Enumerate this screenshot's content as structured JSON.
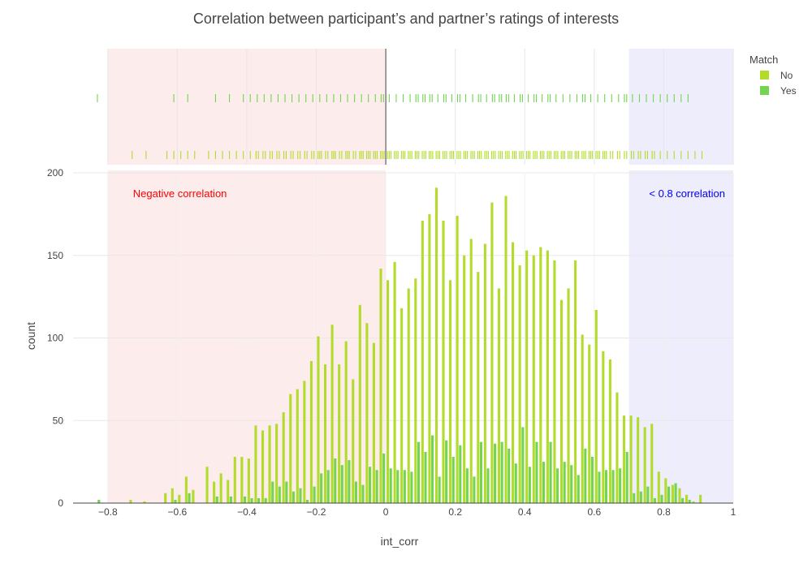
{
  "chart_data": {
    "type": "bar",
    "title": "Correlation between participant’s and partner’s ratings of interests",
    "xlabel": "int_corr",
    "ylabel": "count",
    "xlim": [
      -0.9,
      1.0
    ],
    "ylim": [
      0,
      200
    ],
    "x_ticks": [
      -0.8,
      -0.6,
      -0.4,
      -0.2,
      0,
      0.2,
      0.4,
      0.6,
      0.8,
      1
    ],
    "x_tick_labels": [
      "−0.8",
      "−0.6",
      "−0.4",
      "−0.2",
      "0",
      "0.2",
      "0.4",
      "0.6",
      "0.8",
      "1"
    ],
    "y_ticks": [
      0,
      50,
      100,
      150,
      200
    ],
    "y_tick_labels": [
      "0",
      "50",
      "100",
      "150",
      "200"
    ],
    "bin_width": 0.02,
    "barmode": "group",
    "grid": true,
    "marginal": "rug",
    "legend": {
      "title": "Match",
      "position": "top-right"
    },
    "shaded_regions": [
      {
        "x0": -0.8,
        "x1": 0.0,
        "color": "#fdecec",
        "annotation": "Negative correlation",
        "annotation_color": "#ff0000"
      },
      {
        "x0": 0.7,
        "x1": 1.0,
        "color": "#ededfc",
        "annotation": "< 0.8 correlation",
        "annotation_color": "#0000ff"
      }
    ],
    "reference_line": {
      "x": 0.0
    },
    "series": [
      {
        "name": "No",
        "color": "#b3db2a",
        "bins": [
          [
            -0.73,
            2
          ],
          [
            -0.69,
            1
          ],
          [
            -0.63,
            6
          ],
          [
            -0.61,
            9
          ],
          [
            -0.59,
            5
          ],
          [
            -0.57,
            16
          ],
          [
            -0.55,
            8
          ],
          [
            -0.51,
            22
          ],
          [
            -0.49,
            13
          ],
          [
            -0.47,
            18
          ],
          [
            -0.45,
            14
          ],
          [
            -0.43,
            28
          ],
          [
            -0.41,
            28
          ],
          [
            -0.39,
            27
          ],
          [
            -0.37,
            47
          ],
          [
            -0.35,
            44
          ],
          [
            -0.33,
            47
          ],
          [
            -0.31,
            48
          ],
          [
            -0.29,
            55
          ],
          [
            -0.27,
            66
          ],
          [
            -0.25,
            69
          ],
          [
            -0.23,
            74
          ],
          [
            -0.21,
            86
          ],
          [
            -0.19,
            101
          ],
          [
            -0.17,
            84
          ],
          [
            -0.15,
            108
          ],
          [
            -0.13,
            84
          ],
          [
            -0.11,
            98
          ],
          [
            -0.09,
            75
          ],
          [
            -0.07,
            120
          ],
          [
            -0.05,
            109
          ],
          [
            -0.03,
            97
          ],
          [
            -0.01,
            142
          ],
          [
            0.01,
            135
          ],
          [
            0.03,
            146
          ],
          [
            0.05,
            118
          ],
          [
            0.07,
            130
          ],
          [
            0.09,
            136
          ],
          [
            0.11,
            171
          ],
          [
            0.13,
            175
          ],
          [
            0.15,
            191
          ],
          [
            0.17,
            171
          ],
          [
            0.19,
            135
          ],
          [
            0.21,
            174
          ],
          [
            0.23,
            150
          ],
          [
            0.25,
            160
          ],
          [
            0.27,
            140
          ],
          [
            0.29,
            157
          ],
          [
            0.31,
            182
          ],
          [
            0.33,
            130
          ],
          [
            0.35,
            186
          ],
          [
            0.37,
            158
          ],
          [
            0.39,
            144
          ],
          [
            0.41,
            153
          ],
          [
            0.43,
            150
          ],
          [
            0.45,
            155
          ],
          [
            0.47,
            153
          ],
          [
            0.49,
            147
          ],
          [
            0.51,
            123
          ],
          [
            0.53,
            130
          ],
          [
            0.55,
            147
          ],
          [
            0.57,
            102
          ],
          [
            0.59,
            96
          ],
          [
            0.61,
            117
          ],
          [
            0.63,
            92
          ],
          [
            0.65,
            87
          ],
          [
            0.67,
            67
          ],
          [
            0.69,
            53
          ],
          [
            0.71,
            53
          ],
          [
            0.73,
            52
          ],
          [
            0.75,
            46
          ],
          [
            0.77,
            48
          ],
          [
            0.79,
            19
          ],
          [
            0.81,
            15
          ],
          [
            0.83,
            11
          ],
          [
            0.85,
            9
          ],
          [
            0.87,
            5
          ],
          [
            0.89,
            1
          ],
          [
            0.91,
            5
          ]
        ]
      },
      {
        "name": "Yes",
        "color": "#72d450",
        "bins": [
          [
            -0.83,
            2
          ],
          [
            -0.61,
            2
          ],
          [
            -0.57,
            6
          ],
          [
            -0.49,
            4
          ],
          [
            -0.45,
            4
          ],
          [
            -0.41,
            4
          ],
          [
            -0.39,
            3
          ],
          [
            -0.37,
            3
          ],
          [
            -0.35,
            3
          ],
          [
            -0.33,
            13
          ],
          [
            -0.31,
            10
          ],
          [
            -0.29,
            13
          ],
          [
            -0.27,
            7
          ],
          [
            -0.25,
            9
          ],
          [
            -0.23,
            2
          ],
          [
            -0.21,
            10
          ],
          [
            -0.19,
            18
          ],
          [
            -0.17,
            20
          ],
          [
            -0.15,
            27
          ],
          [
            -0.13,
            23
          ],
          [
            -0.11,
            26
          ],
          [
            -0.09,
            13
          ],
          [
            -0.07,
            11
          ],
          [
            -0.05,
            22
          ],
          [
            -0.03,
            20
          ],
          [
            -0.01,
            30
          ],
          [
            0.01,
            21
          ],
          [
            0.03,
            20
          ],
          [
            0.05,
            20
          ],
          [
            0.07,
            19
          ],
          [
            0.09,
            37
          ],
          [
            0.11,
            31
          ],
          [
            0.13,
            41
          ],
          [
            0.15,
            16
          ],
          [
            0.17,
            38
          ],
          [
            0.19,
            28
          ],
          [
            0.21,
            35
          ],
          [
            0.23,
            21
          ],
          [
            0.25,
            16
          ],
          [
            0.27,
            37
          ],
          [
            0.29,
            21
          ],
          [
            0.31,
            36
          ],
          [
            0.33,
            37
          ],
          [
            0.35,
            33
          ],
          [
            0.37,
            24
          ],
          [
            0.39,
            46
          ],
          [
            0.41,
            22
          ],
          [
            0.43,
            37
          ],
          [
            0.45,
            25
          ],
          [
            0.47,
            37
          ],
          [
            0.49,
            21
          ],
          [
            0.51,
            25
          ],
          [
            0.53,
            23
          ],
          [
            0.55,
            17
          ],
          [
            0.57,
            33
          ],
          [
            0.59,
            28
          ],
          [
            0.61,
            19
          ],
          [
            0.63,
            20
          ],
          [
            0.65,
            20
          ],
          [
            0.67,
            21
          ],
          [
            0.69,
            31
          ],
          [
            0.71,
            6
          ],
          [
            0.73,
            7
          ],
          [
            0.75,
            10
          ],
          [
            0.77,
            3
          ],
          [
            0.79,
            5
          ],
          [
            0.81,
            10
          ],
          [
            0.83,
            12
          ],
          [
            0.85,
            3
          ],
          [
            0.87,
            2
          ]
        ]
      }
    ]
  }
}
